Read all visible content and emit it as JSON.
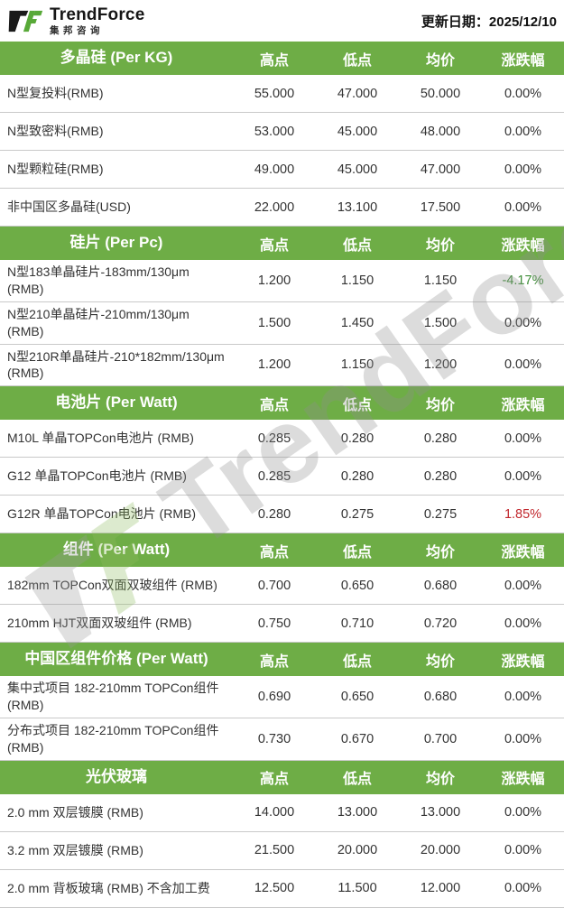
{
  "header": {
    "brand": "TrendForce",
    "brand_cn": "集邦咨询",
    "update_date": "更新日期：2025/12/10"
  },
  "columns": [
    "高点",
    "低点",
    "均价",
    "涨跌幅"
  ],
  "colors": {
    "accent_green": "#6ead46",
    "change_up_red": "#c1272d",
    "change_down_green": "#3f8e38",
    "row_text": "#333333",
    "row_border": "#c9c9c9"
  },
  "watermark": {
    "text": "TrendForce"
  },
  "sections": [
    {
      "title": "多晶硅 (Per KG)",
      "rows": [
        {
          "label": "N型复投料(RMB)",
          "high": "55.000",
          "low": "47.000",
          "avg": "50.000",
          "change": "0.00%",
          "trend": "flat"
        },
        {
          "label": "N型致密料(RMB)",
          "high": "53.000",
          "low": "45.000",
          "avg": "48.000",
          "change": "0.00%",
          "trend": "flat"
        },
        {
          "label": "N型颗粒硅(RMB)",
          "high": "49.000",
          "low": "45.000",
          "avg": "47.000",
          "change": "0.00%",
          "trend": "flat"
        },
        {
          "label": "非中国区多晶硅(USD)",
          "high": "22.000",
          "low": "13.100",
          "avg": "17.500",
          "change": "0.00%",
          "trend": "flat"
        }
      ]
    },
    {
      "title": "硅片 (Per Pc)",
      "rows": [
        {
          "label": "N型183单晶硅片-183mm/130μm (RMB)",
          "high": "1.200",
          "low": "1.150",
          "avg": "1.150",
          "change": "-4.17%",
          "trend": "down"
        },
        {
          "label": "N型210单晶硅片-210mm/130μm (RMB)",
          "high": "1.500",
          "low": "1.450",
          "avg": "1.500",
          "change": "0.00%",
          "trend": "flat"
        },
        {
          "label": "N型210R单晶硅片-210*182mm/130μm (RMB)",
          "high": "1.200",
          "low": "1.150",
          "avg": "1.200",
          "change": "0.00%",
          "trend": "flat"
        }
      ]
    },
    {
      "title": "电池片 (Per Watt)",
      "rows": [
        {
          "label": "M10L 单晶TOPCon电池片 (RMB)",
          "high": "0.285",
          "low": "0.280",
          "avg": "0.280",
          "change": "0.00%",
          "trend": "flat"
        },
        {
          "label": "G12 单晶TOPCon电池片 (RMB)",
          "high": "0.285",
          "low": "0.280",
          "avg": "0.280",
          "change": "0.00%",
          "trend": "flat"
        },
        {
          "label": "G12R 单晶TOPCon电池片 (RMB)",
          "high": "0.280",
          "low": "0.275",
          "avg": "0.275",
          "change": "1.85%",
          "trend": "up"
        }
      ]
    },
    {
      "title": "组件 (Per Watt)",
      "rows": [
        {
          "label": "182mm TOPCon双面双玻组件 (RMB)",
          "high": "0.700",
          "low": "0.650",
          "avg": "0.680",
          "change": "0.00%",
          "trend": "flat"
        },
        {
          "label": "210mm HJT双面双玻组件 (RMB)",
          "high": "0.750",
          "low": "0.710",
          "avg": "0.720",
          "change": "0.00%",
          "trend": "flat"
        }
      ]
    },
    {
      "title": "中国区组件价格 (Per Watt)",
      "rows": [
        {
          "label": "集中式项目 182-210mm TOPCon组件 (RMB)",
          "high": "0.690",
          "low": "0.650",
          "avg": "0.680",
          "change": "0.00%",
          "trend": "flat"
        },
        {
          "label": "分布式项目 182-210mm TOPCon组件 (RMB)",
          "high": "0.730",
          "low": "0.670",
          "avg": "0.700",
          "change": "0.00%",
          "trend": "flat"
        }
      ]
    },
    {
      "title": "光伏玻璃",
      "rows": [
        {
          "label": "2.0 mm 双层镀膜 (RMB)",
          "high": "14.000",
          "low": "13.000",
          "avg": "13.000",
          "change": "0.00%",
          "trend": "flat"
        },
        {
          "label": "3.2 mm 双层镀膜 (RMB)",
          "high": "21.500",
          "low": "20.000",
          "avg": "20.000",
          "change": "0.00%",
          "trend": "flat"
        },
        {
          "label": "2.0 mm 背板玻璃 (RMB) 不含加工费",
          "high": "12.500",
          "low": "11.500",
          "avg": "12.000",
          "change": "0.00%",
          "trend": "flat"
        }
      ]
    }
  ]
}
